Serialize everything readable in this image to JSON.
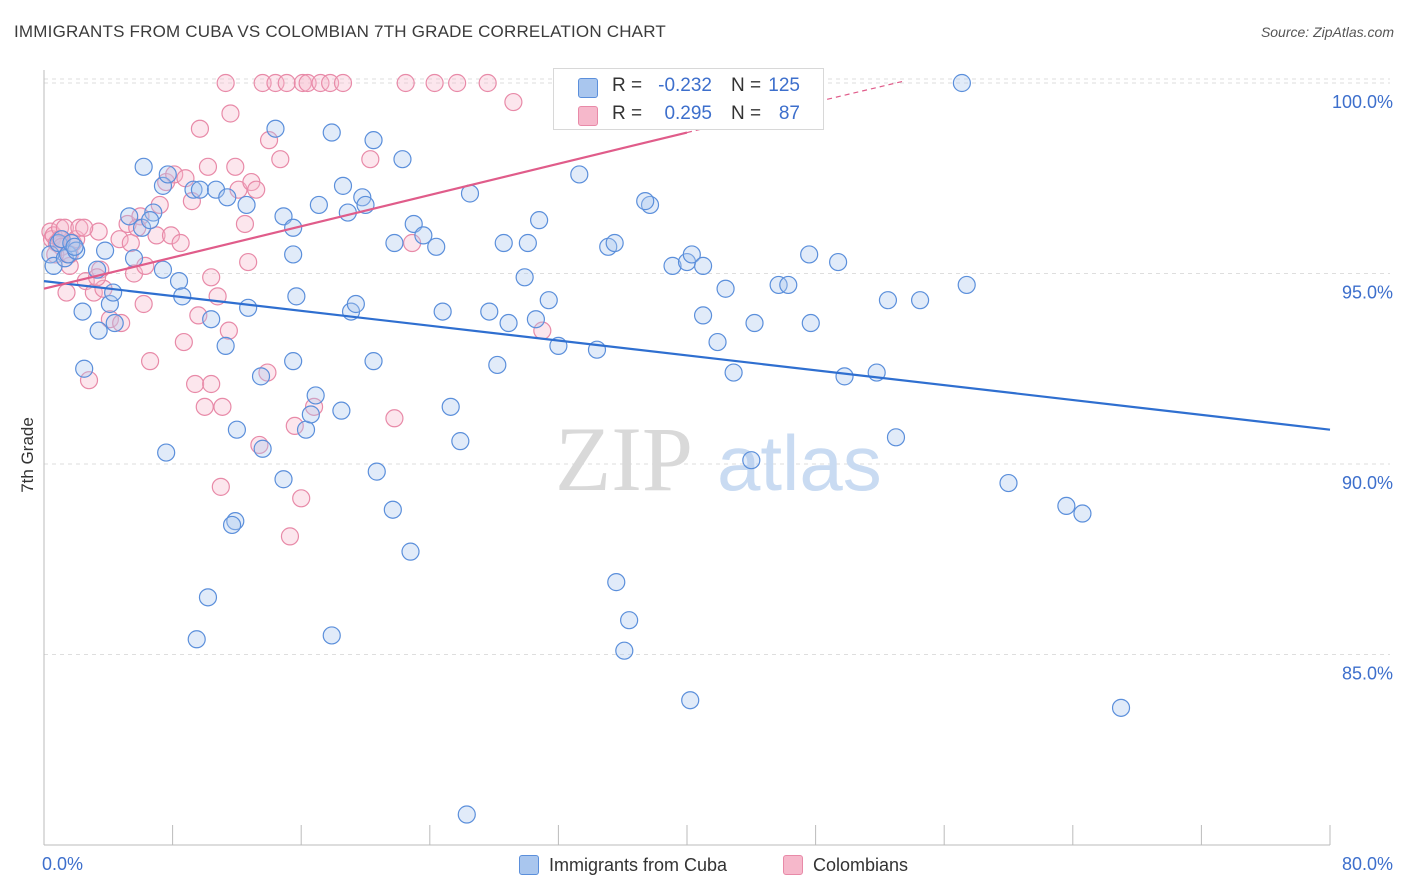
{
  "header": {
    "title": "IMMIGRANTS FROM CUBA VS COLOMBIAN 7TH GRADE CORRELATION CHART",
    "source": "Source: ZipAtlas.com"
  },
  "watermark": {
    "zip": "ZIP",
    "atlas": "atlas"
  },
  "stats_box": {
    "rows": [
      {
        "r_label": "R =",
        "r_value": "-0.232",
        "n_label": "N =",
        "n_value": "125"
      },
      {
        "r_label": "R =",
        "r_value": "0.295",
        "n_label": "N =",
        "n_value": "87"
      }
    ]
  },
  "legend": {
    "items": [
      {
        "label": "Immigrants from Cuba"
      },
      {
        "label": "Colombians"
      }
    ]
  },
  "colors": {
    "cuba_fill": "#a9c6ee",
    "cuba_stroke": "#5b8fdb",
    "cuba_line": "#2f6fd0",
    "col_fill": "#f6b8cb",
    "col_stroke": "#e88aa8",
    "col_line": "#e05c8a",
    "tick_label": "#3d6fcc",
    "grid": "#dedede"
  },
  "chart_data": {
    "type": "scatter",
    "title": "IMMIGRANTS FROM CUBA VS COLOMBIAN 7TH GRADE CORRELATION CHART",
    "xlabel": "",
    "ylabel": "7th Grade",
    "xlim": [
      0,
      80
    ],
    "ylim": [
      80.7,
      100.6
    ],
    "x_tick_labels": [
      "0.0%",
      "80.0%"
    ],
    "y_ticks": [
      85,
      90,
      95,
      100
    ],
    "y_tick_labels": [
      "85.0%",
      "90.0%",
      "95.0%",
      "100.0%"
    ],
    "grid": "horizontal dashed",
    "series": [
      {
        "name": "Immigrants from Cuba",
        "r": -0.232,
        "n": 125,
        "trend": {
          "x": [
            0,
            80
          ],
          "y": [
            94.8,
            90.9
          ],
          "dashed_extension": false
        },
        "points": [
          [
            0.4,
            95.5
          ],
          [
            0.6,
            95.2
          ],
          [
            0.9,
            95.8
          ],
          [
            1.1,
            95.9
          ],
          [
            1.3,
            95.4
          ],
          [
            1.5,
            95.5
          ],
          [
            1.7,
            95.8
          ],
          [
            2,
            95.6
          ],
          [
            1.9,
            95.7
          ],
          [
            2.4,
            94
          ],
          [
            2.5,
            92.5
          ],
          [
            3.3,
            95.1
          ],
          [
            3.4,
            93.5
          ],
          [
            3.8,
            95.6
          ],
          [
            4.1,
            94.2
          ],
          [
            4.3,
            94.5
          ],
          [
            4.4,
            93.7
          ],
          [
            5.3,
            96.5
          ],
          [
            5.6,
            95.4
          ],
          [
            6.2,
            97.8
          ],
          [
            6.1,
            96.2
          ],
          [
            6.8,
            96.6
          ],
          [
            6.6,
            96.4
          ],
          [
            7.4,
            97.3
          ],
          [
            7.4,
            95.1
          ],
          [
            7.7,
            97.6
          ],
          [
            8.4,
            94.8
          ],
          [
            8.6,
            94.4
          ],
          [
            7.6,
            90.3
          ],
          [
            9.3,
            97.2
          ],
          [
            9.7,
            97.2
          ],
          [
            10.7,
            97.2
          ],
          [
            11.4,
            97.0
          ],
          [
            10.4,
            93.8
          ],
          [
            11.3,
            93.1
          ],
          [
            11.9,
            88.5
          ],
          [
            11.7,
            88.4
          ],
          [
            12.0,
            90.9
          ],
          [
            12.7,
            94.1
          ],
          [
            12.6,
            96.8
          ],
          [
            13.5,
            92.3
          ],
          [
            13.6,
            90.4
          ],
          [
            14.4,
            98.8
          ],
          [
            14.9,
            96.5
          ],
          [
            14.9,
            89.6
          ],
          [
            15.5,
            95.5
          ],
          [
            15.5,
            96.2
          ],
          [
            15.7,
            94.4
          ],
          [
            16.3,
            90.9
          ],
          [
            16.6,
            91.3
          ],
          [
            17.1,
            96.8
          ],
          [
            16.9,
            91.8
          ],
          [
            17.9,
            98.7
          ],
          [
            18.5,
            91.4
          ],
          [
            18.6,
            97.3
          ],
          [
            18.9,
            96.6
          ],
          [
            19.1,
            94.0
          ],
          [
            19.4,
            94.2
          ],
          [
            19.8,
            97.0
          ],
          [
            20.0,
            96.8
          ],
          [
            20.5,
            98.5
          ],
          [
            20.5,
            92.7
          ],
          [
            20.7,
            89.8
          ],
          [
            21.8,
            95.8
          ],
          [
            22.3,
            98.0
          ],
          [
            23.0,
            96.3
          ],
          [
            23.6,
            96.0
          ],
          [
            24.4,
            95.7
          ],
          [
            24.8,
            94.0
          ],
          [
            25.3,
            91.5
          ],
          [
            25.9,
            90.6
          ],
          [
            26.5,
            97.1
          ],
          [
            27.7,
            94.0
          ],
          [
            28.2,
            92.6
          ],
          [
            28.6,
            95.8
          ],
          [
            28.9,
            93.7
          ],
          [
            29.9,
            94.9
          ],
          [
            30.1,
            95.8
          ],
          [
            30.6,
            93.8
          ],
          [
            30.8,
            96.4
          ],
          [
            31.4,
            94.3
          ],
          [
            32.0,
            93.1
          ],
          [
            33.3,
            97.6
          ],
          [
            34.4,
            93.0
          ],
          [
            35.1,
            95.7
          ],
          [
            35.5,
            95.8
          ],
          [
            35.6,
            86.9
          ],
          [
            36.4,
            85.9
          ],
          [
            36.1,
            85.1
          ],
          [
            37.7,
            96.8
          ],
          [
            39.1,
            95.2
          ],
          [
            40.0,
            95.3
          ],
          [
            40.3,
            95.5
          ],
          [
            40.2,
            83.8
          ],
          [
            41.0,
            93.9
          ],
          [
            41.9,
            93.2
          ],
          [
            42.4,
            94.6
          ],
          [
            42.9,
            92.4
          ],
          [
            44.2,
            93.7
          ],
          [
            45.7,
            94.7
          ],
          [
            46.3,
            94.7
          ],
          [
            47.6,
            95.5
          ],
          [
            47.7,
            93.7
          ],
          [
            49.4,
            95.3
          ],
          [
            49.8,
            92.3
          ],
          [
            51.8,
            92.4
          ],
          [
            52.5,
            94.3
          ],
          [
            53.0,
            90.7
          ],
          [
            54.5,
            94.3
          ],
          [
            57.1,
            100.0
          ],
          [
            57.4,
            94.7
          ],
          [
            60.0,
            89.5
          ],
          [
            63.6,
            88.9
          ],
          [
            64.6,
            88.7
          ],
          [
            67.0,
            83.6
          ],
          [
            26.3,
            80.8
          ],
          [
            10.2,
            86.5
          ],
          [
            9.5,
            85.4
          ],
          [
            17.9,
            85.5
          ],
          [
            22.8,
            87.7
          ],
          [
            21.7,
            88.8
          ],
          [
            41.0,
            95.2
          ],
          [
            37.4,
            96.9
          ],
          [
            15.5,
            92.7
          ],
          [
            44.0,
            90.1
          ]
        ]
      },
      {
        "name": "Colombians",
        "r": 0.295,
        "n": 87,
        "trend": {
          "x": [
            0,
            40
          ],
          "y": [
            94.6,
            98.7
          ],
          "dashed_extension": true,
          "dash_to": {
            "x": 53.5,
            "y": 100.05
          }
        },
        "points": [
          [
            0.4,
            96.1
          ],
          [
            0.5,
            95.9
          ],
          [
            0.6,
            96.0
          ],
          [
            0.8,
            95.8
          ],
          [
            1.0,
            96.2
          ],
          [
            1.0,
            95.9
          ],
          [
            1.1,
            95.7
          ],
          [
            1.3,
            96.2
          ],
          [
            1.4,
            94.5
          ],
          [
            1.6,
            95.2
          ],
          [
            1.8,
            95.8
          ],
          [
            2.0,
            95.9
          ],
          [
            2.2,
            96.2
          ],
          [
            2.6,
            94.8
          ],
          [
            2.8,
            92.2
          ],
          [
            3.1,
            94.5
          ],
          [
            3.4,
            96.1
          ],
          [
            3.5,
            95.1
          ],
          [
            3.7,
            94.6
          ],
          [
            4.1,
            93.8
          ],
          [
            4.7,
            95.9
          ],
          [
            5.2,
            96.3
          ],
          [
            5.4,
            95.8
          ],
          [
            5.6,
            95.0
          ],
          [
            6.0,
            96.5
          ],
          [
            6.2,
            94.2
          ],
          [
            6.3,
            95.2
          ],
          [
            6.6,
            92.7
          ],
          [
            7.0,
            96.0
          ],
          [
            7.2,
            96.8
          ],
          [
            7.6,
            97.4
          ],
          [
            7.9,
            96.0
          ],
          [
            8.1,
            97.6
          ],
          [
            8.5,
            95.8
          ],
          [
            8.8,
            97.5
          ],
          [
            9.2,
            96.9
          ],
          [
            9.4,
            92.1
          ],
          [
            9.7,
            98.8
          ],
          [
            10.0,
            91.5
          ],
          [
            10.2,
            97.8
          ],
          [
            10.4,
            94.9
          ],
          [
            10.8,
            94.4
          ],
          [
            11.1,
            91.5
          ],
          [
            11.3,
            100.0
          ],
          [
            11.6,
            99.2
          ],
          [
            11.9,
            97.8
          ],
          [
            12.1,
            97.2
          ],
          [
            12.5,
            96.3
          ],
          [
            12.9,
            97.4
          ],
          [
            13.2,
            97.2
          ],
          [
            13.4,
            90.5
          ],
          [
            13.6,
            100.0
          ],
          [
            14.0,
            98.5
          ],
          [
            14.4,
            100.0
          ],
          [
            14.7,
            98.0
          ],
          [
            15.1,
            100.0
          ],
          [
            15.6,
            91.0
          ],
          [
            16.1,
            100.0
          ],
          [
            16.4,
            100.0
          ],
          [
            16.8,
            91.5
          ],
          [
            17.2,
            100.0
          ],
          [
            17.8,
            100.0
          ],
          [
            18.6,
            100.0
          ],
          [
            20.3,
            98.0
          ],
          [
            21.8,
            91.2
          ],
          [
            22.5,
            100.0
          ],
          [
            22.9,
            95.8
          ],
          [
            24.3,
            100.0
          ],
          [
            25.7,
            100.0
          ],
          [
            27.6,
            100.0
          ],
          [
            29.2,
            99.5
          ],
          [
            31.0,
            93.5
          ],
          [
            11.0,
            89.4
          ],
          [
            15.3,
            88.1
          ],
          [
            16.0,
            89.1
          ],
          [
            10.4,
            92.1
          ],
          [
            8.7,
            93.2
          ],
          [
            4.8,
            93.7
          ],
          [
            3.3,
            94.9
          ],
          [
            12.7,
            95.3
          ],
          [
            9.6,
            93.9
          ],
          [
            2.5,
            96.2
          ],
          [
            0.7,
            95.5
          ],
          [
            1.6,
            95.5
          ],
          [
            5.8,
            96.2
          ],
          [
            13.9,
            92.4
          ],
          [
            11.5,
            93.5
          ]
        ]
      }
    ]
  }
}
